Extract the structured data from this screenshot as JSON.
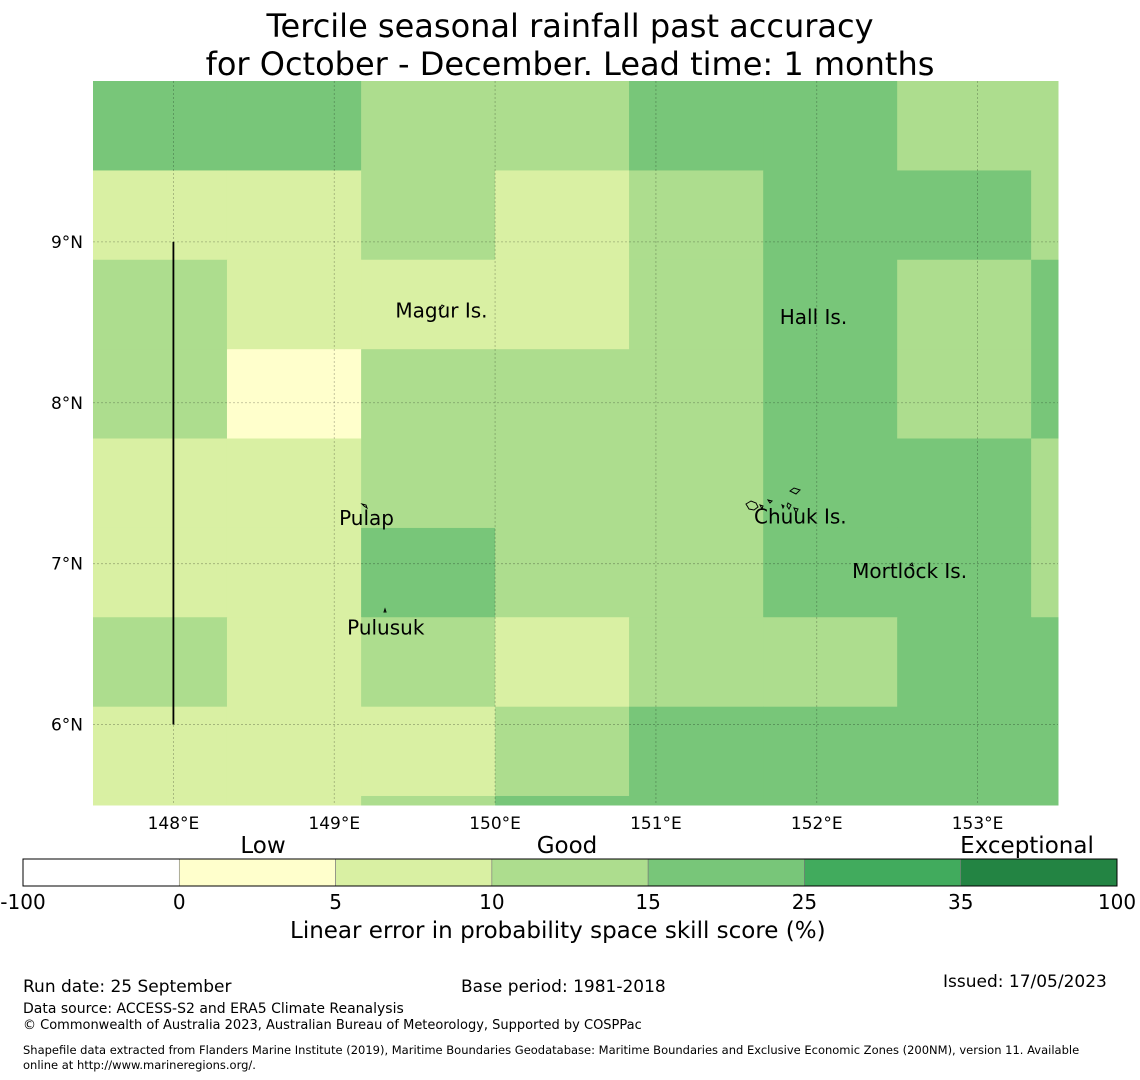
{
  "title": {
    "line1": "Tercile seasonal rainfall past accuracy",
    "line2": "for October - December. Lead time: 1 months"
  },
  "colors": {
    "white": "#ffffff",
    "c0_5": "#ffffcc",
    "c5_10": "#d9f0a3",
    "c10_15": "#addd8e",
    "c15_25": "#78c679",
    "c25_35": "#41ab5d",
    "c35_100": "#238443"
  },
  "map": {
    "lon_range": [
      147.5,
      153.5
    ],
    "lat_range": [
      5.5,
      10.0
    ],
    "lon_ticks": [
      "148°E",
      "149°E",
      "150°E",
      "151°E",
      "152°E",
      "153°E"
    ],
    "lon_tick_values": [
      148,
      149,
      150,
      151,
      152,
      153
    ],
    "lat_ticks": [
      "9°N",
      "8°N",
      "7°N",
      "6°N"
    ],
    "lat_tick_values": [
      9,
      8,
      7,
      6
    ],
    "cell_lon_edges": [
      147.5,
      148.333,
      149.167,
      150.0,
      150.833,
      151.667,
      152.5,
      153.333,
      153.5
    ],
    "cell_lat_edges": [
      10.0,
      9.444,
      8.889,
      8.333,
      7.778,
      7.222,
      6.667,
      6.111,
      5.556,
      5.5
    ],
    "cell_classes": [
      [
        "c15_25",
        "c15_25",
        "c10_15",
        "c10_15",
        "c15_25",
        "c15_25",
        "c10_15",
        "c10_15"
      ],
      [
        "c5_10",
        "c5_10",
        "c10_15",
        "c5_10",
        "c10_15",
        "c15_25",
        "c15_25",
        "c10_15"
      ],
      [
        "c10_15",
        "c5_10",
        "c5_10",
        "c5_10",
        "c10_15",
        "c15_25",
        "c10_15",
        "c15_25"
      ],
      [
        "c10_15",
        "c0_5",
        "c10_15",
        "c10_15",
        "c10_15",
        "c15_25",
        "c10_15",
        "c15_25"
      ],
      [
        "c5_10",
        "c5_10",
        "c10_15",
        "c10_15",
        "c10_15",
        "c15_25",
        "c15_25",
        "c10_15"
      ],
      [
        "c5_10",
        "c5_10",
        "c15_25",
        "c10_15",
        "c10_15",
        "c15_25",
        "c15_25",
        "c10_15"
      ],
      [
        "c10_15",
        "c5_10",
        "c10_15",
        "c5_10",
        "c10_15",
        "c10_15",
        "c15_25",
        "c15_25"
      ],
      [
        "c5_10",
        "c5_10",
        "c5_10",
        "c10_15",
        "c15_25",
        "c15_25",
        "c15_25",
        "c15_25"
      ],
      [
        "c5_10",
        "c5_10",
        "c10_15",
        "c15_25",
        "c15_25",
        "c15_25",
        "c15_25",
        "c15_25"
      ]
    ],
    "boundary_line": {
      "lon": 148.0,
      "lat_from": 6.0,
      "lat_to": 9.0
    },
    "places": [
      {
        "name": "Magur Is.",
        "lon": 149.38,
        "lat": 8.53
      },
      {
        "name": "Hall Is.",
        "lon": 151.77,
        "lat": 8.49
      },
      {
        "name": "Pulap",
        "lon": 149.03,
        "lat": 7.24
      },
      {
        "name": "Chuuk Is.",
        "lon": 151.61,
        "lat": 7.25
      },
      {
        "name": "Mortlock Is.",
        "lon": 152.22,
        "lat": 6.91
      },
      {
        "name": "Pulusuk",
        "lon": 149.08,
        "lat": 6.56
      }
    ]
  },
  "colorbar": {
    "categories": [
      "Low",
      "Good",
      "Exceptional"
    ],
    "tick_labels": [
      "-100",
      "0",
      "5",
      "10",
      "15",
      "25",
      "35",
      "100"
    ],
    "segments": [
      "white",
      "c0_5",
      "c5_10",
      "c10_15",
      "c15_25",
      "c25_35",
      "c35_100"
    ],
    "label": "Linear error in probability space skill score (%)"
  },
  "footer": {
    "run_date": "Run date: 25 September",
    "base_period": "Base period: 1981-2018",
    "issued": "Issued: 17/05/2023",
    "data_source": "Data source: ACCESS-S2 and ERA5 Climate Reanalysis",
    "copyright": "© Commonwealth of Australia 2023, Australian Bureau of Meteorology, Supported by COSPPac",
    "shapefile_line1": "Shapefile data extracted from Flanders Marine Institute (2019), Maritime Boundaries Geodatabase: Maritime Boundaries and Exclusive Economic Zones (200NM), version 11. Available",
    "shapefile_line2": "online at http://www.marineregions.org/."
  }
}
